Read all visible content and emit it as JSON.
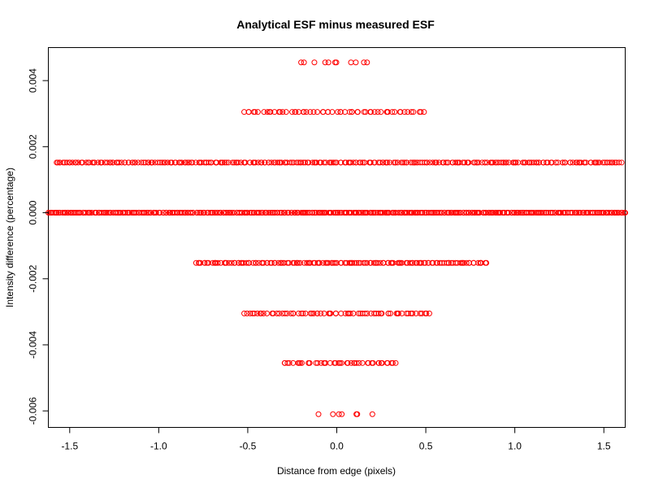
{
  "chart_data": {
    "type": "scatter",
    "title": "Analytical ESF minus measured ESF",
    "xlabel": "Distance from edge (pixels)",
    "ylabel": "Intensity difference (percentage)",
    "xlim": [
      -1.62,
      1.62
    ],
    "ylim": [
      -0.0065,
      0.005
    ],
    "xticks": [
      -1.5,
      -1.0,
      -0.5,
      0.0,
      0.5,
      1.0,
      1.5
    ],
    "xtick_labels": [
      "-1.5",
      "-1.0",
      "-0.5",
      "0.0",
      "0.5",
      "1.0",
      "1.5"
    ],
    "yticks": [
      -0.006,
      -0.004,
      -0.002,
      0.0,
      0.002,
      0.004
    ],
    "ytick_labels": [
      "-0.006",
      "-0.004",
      "-0.002",
      "0.000",
      "0.002",
      "0.004"
    ],
    "marker": "open-circle",
    "marker_color": "#ff0000",
    "grid": false,
    "levels": [
      {
        "y": 0.00455,
        "x_min": -0.21,
        "x_max": 0.17,
        "n": 11
      },
      {
        "y": 0.00305,
        "x_min": -0.52,
        "x_max": 0.49,
        "n": 60
      },
      {
        "y": 0.00152,
        "x_min": -1.58,
        "x_max": 1.6,
        "n": 300
      },
      {
        "y": 0.0,
        "x_min": -1.62,
        "x_max": 1.62,
        "n": 420
      },
      {
        "y": -0.00152,
        "x_min": -0.79,
        "x_max": 0.84,
        "n": 150
      },
      {
        "y": -0.00305,
        "x_min": -0.52,
        "x_max": 0.52,
        "n": 70
      },
      {
        "y": -0.00455,
        "x_min": -0.3,
        "x_max": 0.34,
        "n": 45
      },
      {
        "y": -0.0061,
        "x_min": -0.11,
        "x_max": 0.2,
        "n": 7
      }
    ]
  }
}
